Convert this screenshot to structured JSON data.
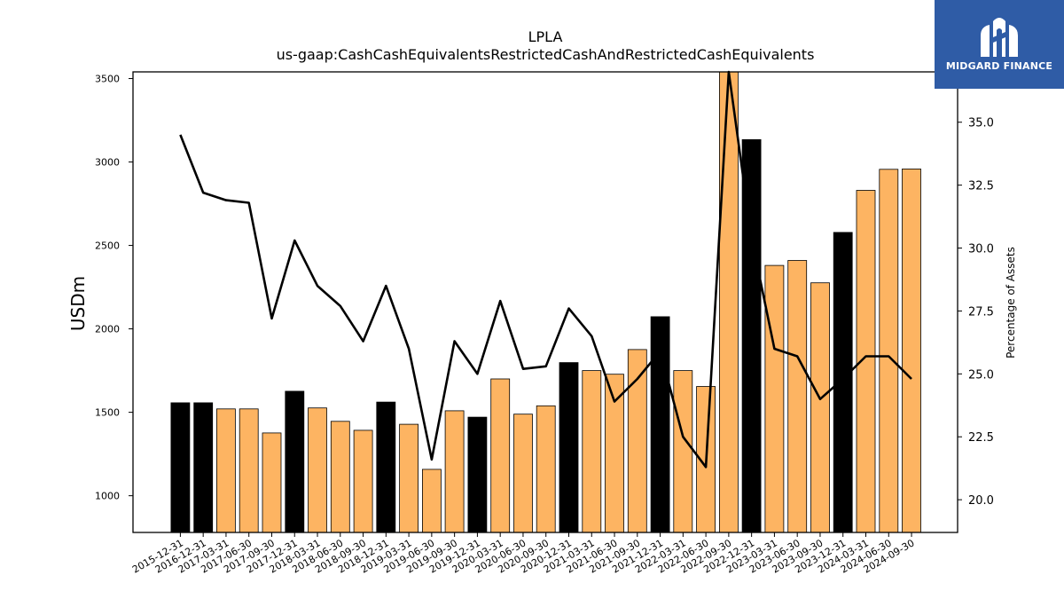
{
  "chart_data": {
    "type": "bar",
    "title": "LPLA",
    "subtitle": "us-gaap:CashCashEquivalentsRestrictedCashAndRestrictedCashEquivalents",
    "ylabel": "USDm",
    "y2label": "Percentage of Assets",
    "ylim": [
      780,
      3540
    ],
    "y2lim": [
      18.7,
      37.0
    ],
    "yticks": [
      1000,
      1500,
      2000,
      2500,
      3000,
      3500
    ],
    "y2ticks": [
      "20.0",
      "22.5",
      "25.0",
      "27.5",
      "30.0",
      "32.5",
      "35.0"
    ],
    "grid": false,
    "categories": [
      "2015-12-31",
      "2016-12-31",
      "2017-03-31",
      "2017-06-30",
      "2017-09-30",
      "2017-12-31",
      "2018-03-31",
      "2018-06-30",
      "2018-09-30",
      "2018-12-31",
      "2019-03-31",
      "2019-06-30",
      "2019-09-30",
      "2019-12-31",
      "2020-03-31",
      "2020-06-30",
      "2020-09-30",
      "2020-12-31",
      "2021-03-31",
      "2021-06-30",
      "2021-09-30",
      "2021-12-31",
      "2022-03-31",
      "2022-06-30",
      "2022-09-30",
      "2022-12-31",
      "2023-03-31",
      "2023-06-30",
      "2023-09-30",
      "2023-12-31",
      "2024-03-31",
      "2024-06-30",
      "2024-09-30"
    ],
    "series": [
      {
        "type": "bar",
        "values": [
          1557,
          1557,
          1520,
          1520,
          1376,
          1626,
          1526,
          1446,
          1392,
          1561,
          1428,
          1158,
          1509,
          1471,
          1700,
          1489,
          1539,
          1798,
          1750,
          1728,
          1876,
          2073,
          1750,
          1655,
          3600,
          3134,
          2380,
          2410,
          2276,
          2578,
          2830,
          2956,
          2958
        ],
        "colors": [
          "#000000",
          "#000000",
          "#fdb462",
          "#fdb462",
          "#fdb462",
          "#000000",
          "#fdb462",
          "#fdb462",
          "#fdb462",
          "#000000",
          "#fdb462",
          "#fdb462",
          "#fdb462",
          "#000000",
          "#fdb462",
          "#fdb462",
          "#fdb462",
          "#000000",
          "#fdb462",
          "#fdb462",
          "#fdb462",
          "#000000",
          "#fdb462",
          "#fdb462",
          "#fdb462",
          "#000000",
          "#fdb462",
          "#fdb462",
          "#fdb462",
          "#000000",
          "#fdb462",
          "#fdb462",
          "#fdb462"
        ]
      },
      {
        "type": "line",
        "axis": "right",
        "color": "#000000",
        "values": [
          34.5,
          32.2,
          31.9,
          31.8,
          27.2,
          30.3,
          28.5,
          27.7,
          26.3,
          28.5,
          26.0,
          21.6,
          26.3,
          25.0,
          27.9,
          25.2,
          25.3,
          27.6,
          26.5,
          23.9,
          24.8,
          25.9,
          22.5,
          21.3,
          37.0,
          30.4,
          26.0,
          25.7,
          24.0,
          24.8,
          25.7,
          25.7,
          24.8
        ]
      }
    ]
  },
  "logo": {
    "name": "MIDGARD FINANCE"
  }
}
